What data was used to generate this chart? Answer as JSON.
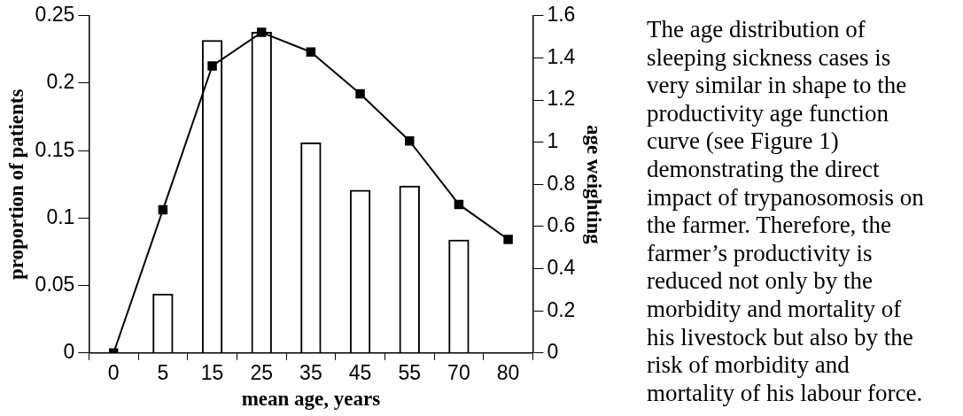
{
  "chart_data": {
    "type": "bar",
    "categories": [
      "0",
      "5",
      "15",
      "25",
      "35",
      "45",
      "55",
      "70",
      "80"
    ],
    "xlabel": "mean age, years",
    "ylabel": "proportion of patients",
    "y2label": "age weighting",
    "series": [
      {
        "color": "#000000",
        "values": [
          null,
          0.044,
          0.232,
          0.238,
          0.156,
          0.121,
          0.124,
          0.084,
          null
        ]
      },
      {
        "type": "line",
        "axis": "y2",
        "color": "#000000",
        "marker": "square",
        "line_style": "solid",
        "values": [
          0,
          0.679,
          1.362,
          1.521,
          1.428,
          1.23,
          1.006,
          0.705,
          0.539
        ]
      }
    ],
    "ylim": [
      0,
      0.25
    ],
    "yticks": [
      0,
      0.05,
      0.1,
      0.15,
      0.2,
      0.25
    ],
    "y2lim": [
      0,
      1.6
    ],
    "y2ticks": [
      0,
      0.2,
      0.4,
      0.6,
      0.8,
      1,
      1.2,
      1.4,
      1.6
    ],
    "grid": false,
    "legend": false,
    "annotations": [
      "The age distribution of\nsleeping sickness cases is\nvery similar in shape to the\nproductivity age function\ncurve (see Figure 1)\ndemonstrating the direct\nimpact of trypanosomosis on\nthe farmer. Therefore, the\nfarmer’s productivity is\nreduced not only by the\nmorbidity and mortality of\nhis livestock but also by the\nrisk of morbidity and\nmortality of his labour force."
    ]
  }
}
